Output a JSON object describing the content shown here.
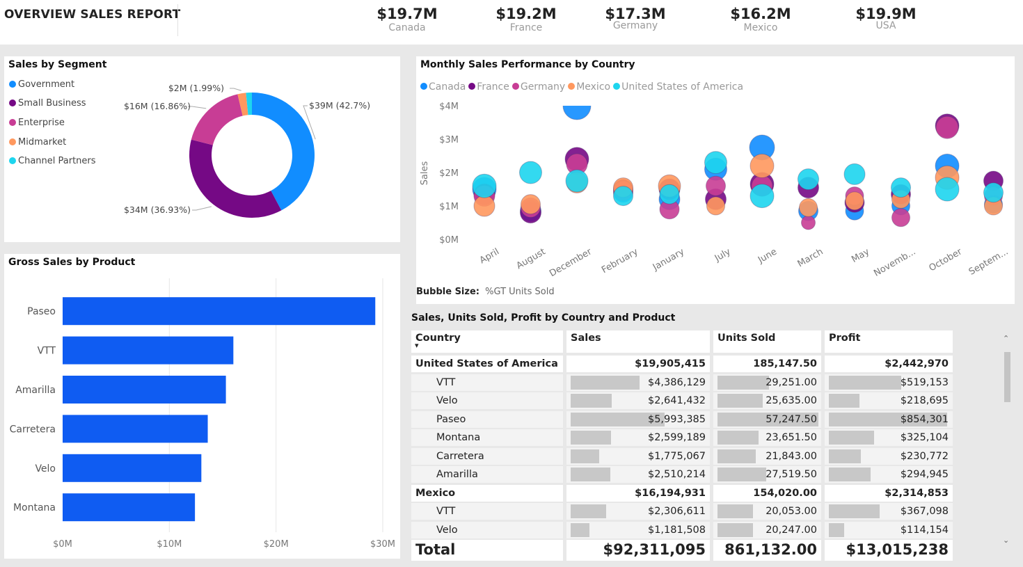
{
  "header": {
    "title": "OVERVIEW SALES REPORT",
    "kpis": [
      {
        "value": "$19.7M",
        "label": "Canada"
      },
      {
        "value": "$19.2M",
        "label": "France"
      },
      {
        "value": "$17.3M",
        "label": "Germany"
      },
      {
        "value": "$16.2M",
        "label": "Mexico"
      },
      {
        "value": "$19.9M",
        "label": "USA"
      }
    ]
  },
  "segment_panel": {
    "title": "Sales by Segment",
    "legend": [
      {
        "label": "Government",
        "color": "#118DFF"
      },
      {
        "label": "Small Business",
        "color": "#750985"
      },
      {
        "label": "Enterprise",
        "color": "#C83D95"
      },
      {
        "label": "Midmarket",
        "color": "#FF985E"
      },
      {
        "label": "Channel Partners",
        "color": "#1DD5EE"
      }
    ]
  },
  "product_panel": {
    "title": "Gross Sales by Product"
  },
  "bubble_panel": {
    "title": "Monthly Sales Performance by Country",
    "bubble_size_label": "Bubble Size:",
    "bubble_size_value": "%GT Units Sold"
  },
  "table": {
    "title": "Sales, Units Sold, Profit by Country and Product",
    "headers": [
      "Country",
      "Sales",
      "Units Sold",
      "Profit"
    ],
    "rows": [
      {
        "type": "group",
        "name": "United States of America",
        "sales": "$19,905,415",
        "units": "185,147.50",
        "profit": "$2,442,970"
      },
      {
        "type": "sub",
        "name": "VTT",
        "sales": "$4,386,129",
        "units": "29,251.00",
        "profit": "$519,153",
        "sales_frac": 0.73,
        "units_frac": 0.51,
        "profit_frac": 0.61
      },
      {
        "type": "sub",
        "name": "Velo",
        "sales": "$2,641,432",
        "units": "25,635.00",
        "profit": "$218,695",
        "sales_frac": 0.44,
        "units_frac": 0.45,
        "profit_frac": 0.26
      },
      {
        "type": "sub",
        "name": "Paseo",
        "sales": "$5,993,385",
        "units": "57,247.50",
        "profit": "$854,301",
        "sales_frac": 1.0,
        "units_frac": 1.0,
        "profit_frac": 1.0
      },
      {
        "type": "sub",
        "name": "Montana",
        "sales": "$2,599,189",
        "units": "23,651.50",
        "profit": "$325,104",
        "sales_frac": 0.43,
        "units_frac": 0.41,
        "profit_frac": 0.38
      },
      {
        "type": "sub",
        "name": "Carretera",
        "sales": "$1,775,067",
        "units": "21,843.00",
        "profit": "$230,772",
        "sales_frac": 0.3,
        "units_frac": 0.38,
        "profit_frac": 0.27
      },
      {
        "type": "sub",
        "name": "Amarilla",
        "sales": "$2,510,214",
        "units": "27,519.50",
        "profit": "$294,945",
        "sales_frac": 0.42,
        "units_frac": 0.48,
        "profit_frac": 0.35
      },
      {
        "type": "group",
        "name": "Mexico",
        "sales": "$16,194,931",
        "units": "154,020.00",
        "profit": "$2,314,853"
      },
      {
        "type": "sub",
        "name": "VTT",
        "sales": "$2,306,611",
        "units": "20,053.00",
        "profit": "$367,098",
        "sales_frac": 0.38,
        "units_frac": 0.35,
        "profit_frac": 0.43
      },
      {
        "type": "sub",
        "name": "Velo",
        "sales": "$1,181,508",
        "units": "20,247.00",
        "profit": "$114,154",
        "sales_frac": 0.2,
        "units_frac": 0.35,
        "profit_frac": 0.13
      }
    ],
    "total": {
      "name": "Total",
      "sales": "$92,311,095",
      "units": "861,132.00",
      "profit": "$13,015,238"
    }
  },
  "chart_data": [
    {
      "type": "pie",
      "variant": "donut",
      "title": "Sales by Segment",
      "slices": [
        {
          "label": "Government",
          "value": 39,
          "percent": 42.7,
          "data_label": "$39M (42.7%)",
          "color": "#118DFF"
        },
        {
          "label": "Small Business",
          "value": 34,
          "percent": 36.93,
          "data_label": "$34M (36.93%)",
          "color": "#750985"
        },
        {
          "label": "Enterprise",
          "value": 16,
          "percent": 16.86,
          "data_label": "$16M (16.86%)",
          "color": "#C83D95"
        },
        {
          "label": "Midmarket",
          "value": 2,
          "percent": 1.99,
          "data_label": "$2M (1.99%)",
          "color": "#FF985E"
        },
        {
          "label": "Channel Partners",
          "value": 1.4,
          "percent": 1.52,
          "data_label": "",
          "color": "#1DD5EE"
        }
      ],
      "legend": "left"
    },
    {
      "type": "bar",
      "orientation": "horizontal",
      "title": "Gross Sales by Product",
      "categories": [
        "Paseo",
        "VTT",
        "Amarilla",
        "Carretera",
        "Velo",
        "Montana"
      ],
      "values": [
        29.3,
        16.0,
        15.3,
        13.6,
        13.0,
        12.4
      ],
      "unit": "M",
      "xlim": [
        0,
        30
      ],
      "xticks": [
        "$0M",
        "$10M",
        "$20M",
        "$30M"
      ],
      "color": "#0F5CF2",
      "grid": true
    },
    {
      "type": "scatter",
      "variant": "bubble",
      "title": "Monthly Sales Performance by Country",
      "ylabel": "Sales",
      "ylim": [
        0,
        4
      ],
      "yticks": [
        "$0M",
        "$1M",
        "$2M",
        "$3M",
        "$4M"
      ],
      "categories": [
        "April",
        "August",
        "December",
        "February",
        "January",
        "July",
        "June",
        "March",
        "May",
        "Novemb...",
        "October",
        "Septem..."
      ],
      "legend": "top-left",
      "series": [
        {
          "name": "Canada",
          "color": "#118DFF",
          "values": [
            1.5,
            0.85,
            4.0,
            1.4,
            1.2,
            2.1,
            2.75,
            0.85,
            0.85,
            1.0,
            2.2,
            1.05
          ]
        },
        {
          "name": "France",
          "color": "#750985",
          "values": [
            1.35,
            0.8,
            2.4,
            1.5,
            1.5,
            1.2,
            1.65,
            1.55,
            1.1,
            1.35,
            3.4,
            1.75
          ]
        },
        {
          "name": "Germany",
          "color": "#C83D95",
          "values": [
            1.3,
            0.95,
            2.25,
            1.45,
            0.9,
            1.6,
            1.6,
            0.5,
            1.3,
            0.65,
            3.35,
            1.3
          ]
        },
        {
          "name": "Mexico",
          "color": "#FF985E",
          "values": [
            1.0,
            1.05,
            1.7,
            1.55,
            1.6,
            1.0,
            2.2,
            0.95,
            1.15,
            1.2,
            1.85,
            1.0
          ]
        },
        {
          "name": "United States of America",
          "color": "#1DD5EE",
          "values": [
            1.6,
            2.0,
            1.75,
            1.3,
            1.35,
            2.3,
            1.3,
            1.8,
            1.95,
            1.55,
            1.5,
            1.4
          ]
        }
      ]
    }
  ]
}
